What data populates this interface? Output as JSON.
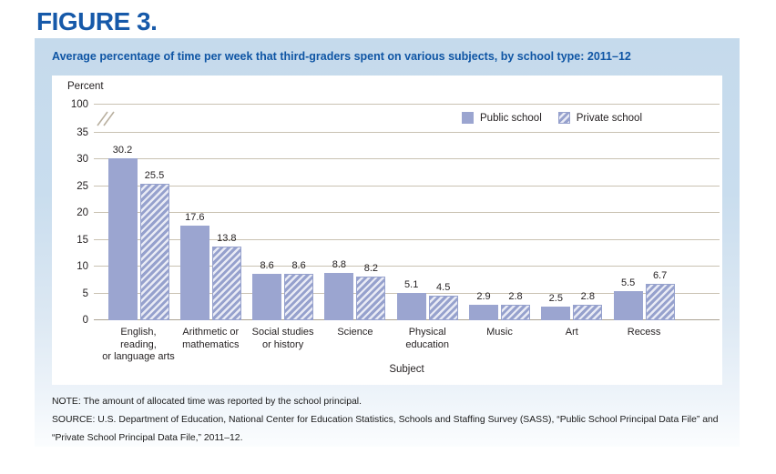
{
  "figure_label": "FIGURE 3.",
  "title": "Average percentage of time per week that third-graders spent on various subjects, by school type: 2011–12",
  "note": "NOTE: The amount of allocated time was reported by the school principal.",
  "source": "SOURCE: U.S. Department of Education, National Center for Education Statistics, Schools and Staffing Survey (SASS), “Public School Principal Data File” and “Private School Principal Data File,” 2011–12.",
  "colors": {
    "heading_blue": "#1659a9",
    "title_blue": "#0f55a4",
    "banner_bg": "#c9ddee",
    "bar_fill": "#9ba5d0",
    "hatch_light": "#e9ebf5",
    "gridline": "#c9c2b2",
    "baseline": "#aba393",
    "axis_break": "#b9b09f"
  },
  "chart_data": {
    "type": "bar",
    "title": "Average percentage of time per week that third-graders spent on various subjects, by school type: 2011–12",
    "ylabel": "Percent",
    "xlabel": "Subject",
    "grid": true,
    "legend_position": "top-right",
    "yticks": [
      0,
      5,
      10,
      15,
      20,
      25,
      30,
      35
    ],
    "broken_axis_top_tick": 100,
    "ylim": [
      0,
      35
    ],
    "categories": [
      [
        "English,",
        "reading,",
        "or language arts"
      ],
      [
        "Arithmetic or",
        "mathematics"
      ],
      [
        "Social studies",
        "or history"
      ],
      [
        "Science"
      ],
      [
        "Physical",
        "education"
      ],
      [
        "Music"
      ],
      [
        "Art"
      ],
      [
        "Recess"
      ]
    ],
    "series": [
      {
        "name": "Public school",
        "style": "solid",
        "values": [
          30.2,
          17.6,
          8.6,
          8.8,
          5.1,
          2.9,
          2.5,
          5.5
        ]
      },
      {
        "name": "Private school",
        "style": "hatched",
        "values": [
          25.5,
          13.8,
          8.6,
          8.2,
          4.5,
          2.8,
          2.8,
          6.7
        ]
      }
    ]
  }
}
